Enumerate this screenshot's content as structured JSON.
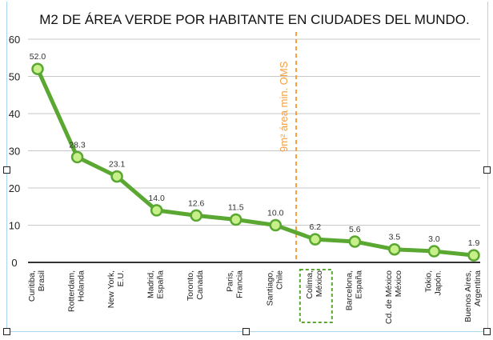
{
  "chart_data": {
    "type": "line",
    "title": "M2 DE ÁREA VERDE POR HABITANTE EN CIUDADES DEL MUNDO.",
    "xlabel": "",
    "ylabel": "",
    "ylim": [
      0,
      60
    ],
    "yticks": [
      "0",
      "10",
      "20",
      "30",
      "40",
      "50",
      "60"
    ],
    "grid": true,
    "categories": [
      [
        "Curitiba,",
        "Brasil"
      ],
      [
        "Rotterdam,",
        "Holanda"
      ],
      [
        "New York,",
        "E.U."
      ],
      [
        "Madrid,",
        "España"
      ],
      [
        "Toronto,",
        "Canada"
      ],
      [
        "Paris,",
        "Francia"
      ],
      [
        "Santiago,",
        "Chile"
      ],
      [
        "Colima,",
        "México"
      ],
      [
        "Barcelona,",
        "España"
      ],
      [
        "Cd. de México",
        "México"
      ],
      [
        "Tokio,",
        "Japón."
      ],
      [
        "Buenos Aires,",
        "Argentina"
      ]
    ],
    "values": [
      52.0,
      28.3,
      23.1,
      14.0,
      12.6,
      11.5,
      10.0,
      6.2,
      5.6,
      3.5,
      3.0,
      1.9
    ],
    "labels": [
      "52.0",
      "28.3",
      "23.1",
      "14.0",
      "12.6",
      "11.5",
      "10.0",
      "6.2",
      "5.6",
      "3.5",
      "3.0",
      "1.9"
    ],
    "annotation": {
      "text": "9m² área min. OMS",
      "value": 9,
      "color": "#f5a040"
    },
    "highlight_index": 7,
    "line_color": "#5aa832",
    "marker_fill": "#c8f08a"
  }
}
